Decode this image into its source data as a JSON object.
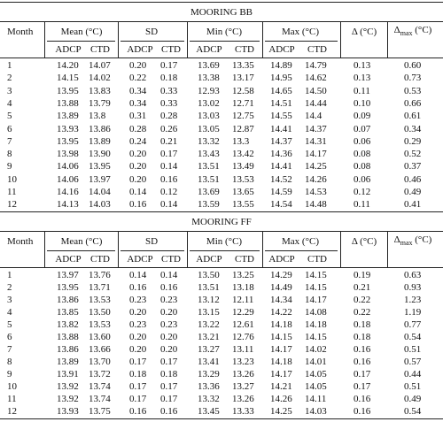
{
  "tables": [
    {
      "title": "MOORING BB",
      "header": [
        "Month",
        "Mean (°C)",
        "SD",
        "Min (°C)",
        "Max (°C)",
        "Δ (°C)",
        {
          "symbol": "Δ",
          "subscript": "max",
          "unit": "(°C)"
        }
      ],
      "subheader": [
        "ADCP",
        "CTD",
        "ADCP",
        "CTD",
        "ADCP",
        "CTD",
        "ADCP",
        "CTD"
      ],
      "rows": [
        [
          "1",
          "14.20",
          "14.07",
          "0.20",
          "0.17",
          "13.69",
          "13.35",
          "14.89",
          "14.79",
          "0.13",
          "0.60"
        ],
        [
          "2",
          "14.15",
          "14.02",
          "0.22",
          "0.18",
          "13.38",
          "13.17",
          "14.95",
          "14.62",
          "0.13",
          "0.73"
        ],
        [
          "3",
          "13.95",
          "13.83",
          "0.34",
          "0.33",
          "12.93",
          "12.58",
          "14.65",
          "14.50",
          "0.11",
          "0.53"
        ],
        [
          "4",
          "13.88",
          "13.79",
          "0.34",
          "0.33",
          "13.02",
          "12.71",
          "14.51",
          "14.44",
          "0.10",
          "0.66"
        ],
        [
          "5",
          "13.89",
          "13.8",
          "0.31",
          "0.28",
          "13.03",
          "12.75",
          "14.55",
          "14.4",
          "0.09",
          "0.61"
        ],
        [
          "6",
          "13.93",
          "13.86",
          "0.28",
          "0.26",
          "13.05",
          "12.87",
          "14.41",
          "14.37",
          "0.07",
          "0.34"
        ],
        [
          "7",
          "13.95",
          "13.89",
          "0.24",
          "0.21",
          "13.32",
          "13.3",
          "14.37",
          "14.31",
          "0.06",
          "0.29"
        ],
        [
          "8",
          "13.98",
          "13.90",
          "0.20",
          "0.17",
          "13.43",
          "13.42",
          "14.36",
          "14.17",
          "0.08",
          "0.52"
        ],
        [
          "9",
          "14.06",
          "13.95",
          "0.20",
          "0.14",
          "13.51",
          "13.49",
          "14.41",
          "14.25",
          "0.08",
          "0.37"
        ],
        [
          "10",
          "14.06",
          "13.97",
          "0.20",
          "0.16",
          "13.51",
          "13.53",
          "14.52",
          "14.26",
          "0.06",
          "0.46"
        ],
        [
          "11",
          "14.16",
          "14.04",
          "0.14",
          "0.12",
          "13.69",
          "13.65",
          "14.59",
          "14.53",
          "0.12",
          "0.49"
        ],
        [
          "12",
          "14.13",
          "14.03",
          "0.16",
          "0.14",
          "13.59",
          "13.55",
          "14.54",
          "14.48",
          "0.11",
          "0.41"
        ]
      ]
    },
    {
      "title": "MOORING FF",
      "header": [
        "Month",
        "Mean (°C)",
        "SD",
        "Min (°C)",
        "Max (°C)",
        "Δ (°C)",
        {
          "symbol": "Δ",
          "subscript": "max",
          "unit": "(°C)"
        }
      ],
      "subheader": [
        "ADCP",
        "CTD",
        "ADCP",
        "CTD",
        "ADCP",
        "CTD",
        "ADCP",
        "CTD"
      ],
      "rows": [
        [
          "1",
          "13.97",
          "13.76",
          "0.14",
          "0.14",
          "13.50",
          "13.25",
          "14.29",
          "14.15",
          "0.19",
          "0.63"
        ],
        [
          "2",
          "13.95",
          "13.71",
          "0.16",
          "0.16",
          "13.51",
          "13.18",
          "14.49",
          "14.15",
          "0.21",
          "0.93"
        ],
        [
          "3",
          "13.86",
          "13.53",
          "0.23",
          "0.23",
          "13.12",
          "12.11",
          "14.34",
          "14.17",
          "0.22",
          "1.23"
        ],
        [
          "4",
          "13.85",
          "13.50",
          "0.20",
          "0.20",
          "13.15",
          "12.29",
          "14.22",
          "14.08",
          "0.22",
          "1.19"
        ],
        [
          "5",
          "13.82",
          "13.53",
          "0.23",
          "0.23",
          "13.22",
          "12.61",
          "14.18",
          "14.18",
          "0.18",
          "0.77"
        ],
        [
          "6",
          "13.88",
          "13.60",
          "0.20",
          "0.20",
          "13.21",
          "12.76",
          "14.15",
          "14.15",
          "0.18",
          "0.54"
        ],
        [
          "7",
          "13.86",
          "13.66",
          "0.20",
          "0.20",
          "13.27",
          "13.11",
          "14.17",
          "14.02",
          "0.16",
          "0.51"
        ],
        [
          "8",
          "13.89",
          "13.70",
          "0.17",
          "0.17",
          "13.41",
          "13.23",
          "14.18",
          "14.01",
          "0.16",
          "0.57"
        ],
        [
          "9",
          "13.91",
          "13.72",
          "0.18",
          "0.18",
          "13.29",
          "13.26",
          "14.17",
          "14.05",
          "0.17",
          "0.44"
        ],
        [
          "10",
          "13.92",
          "13.74",
          "0.17",
          "0.17",
          "13.36",
          "13.27",
          "14.21",
          "14.05",
          "0.17",
          "0.51"
        ],
        [
          "11",
          "13.92",
          "13.74",
          "0.17",
          "0.17",
          "13.32",
          "13.26",
          "14.26",
          "14.11",
          "0.16",
          "0.49"
        ],
        [
          "12",
          "13.93",
          "13.75",
          "0.16",
          "0.16",
          "13.45",
          "13.33",
          "14.25",
          "14.03",
          "0.16",
          "0.54"
        ]
      ]
    }
  ]
}
